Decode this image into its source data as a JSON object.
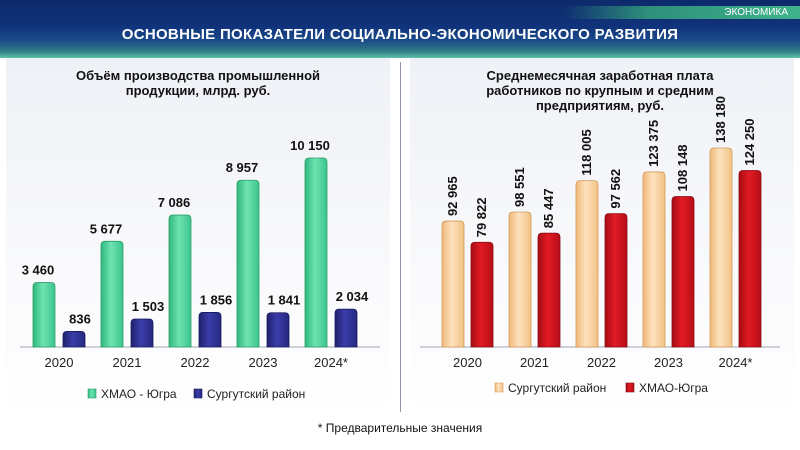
{
  "header": {
    "tag": "ЭКОНОМИКА",
    "title": "ОСНОВНЫЕ ПОКАЗАТЕЛИ СОЦИАЛЬНО-ЭКОНОМИЧЕСКОГО РАЗВИТИЯ"
  },
  "left_title_lines": [
    "Объём производства промышленной",
    "продукции, млрд. руб."
  ],
  "right_title_lines": [
    "Среднемесячная заработная плата",
    "работников по крупным и средним",
    "предприятиям, руб."
  ],
  "footnote": "* Предварительные значения",
  "colors": {
    "green": "#4fd49a",
    "navy": "#2b2d8c",
    "peach": "#f6c890",
    "red": "#c8101a"
  },
  "chart_data": [
    {
      "type": "bar",
      "title": "Объём производства промышленной продукции, млрд. руб.",
      "categories": [
        "2020",
        "2021",
        "2022",
        "2023",
        "2024*"
      ],
      "series": [
        {
          "name": "ХМАО - Югра",
          "values": [
            3460,
            5677,
            7086,
            8957,
            10150
          ],
          "labels": [
            "3 460",
            "5 677",
            "7 086",
            "8 957",
            "10 150"
          ],
          "color": "#4fd49a"
        },
        {
          "name": "Сургутский район",
          "values": [
            836,
            1503,
            1856,
            1841,
            2034
          ],
          "labels": [
            "836",
            "1 503",
            "1 856",
            "1 841",
            "2 034"
          ],
          "color": "#2b2d8c"
        }
      ],
      "legend": "bottom",
      "grid": false
    },
    {
      "type": "bar",
      "title": "Среднемесячная заработная плата работников по крупным и средним предприятиям, руб.",
      "categories": [
        "2020",
        "2021",
        "2022",
        "2023",
        "2024*"
      ],
      "series": [
        {
          "name": "Сургутский район",
          "values": [
            92965,
            98551,
            118005,
            123375,
            138180
          ],
          "labels": [
            "92 965",
            "98 551",
            "118 005",
            "123 375",
            "138 180"
          ],
          "color": "#f6c890"
        },
        {
          "name": "ХМАО-Югра",
          "values": [
            79822,
            85447,
            97562,
            108148,
            124250
          ],
          "labels": [
            "79 822",
            "85 447",
            "97 562",
            "108 148",
            "124 250"
          ],
          "color": "#c8101a"
        }
      ],
      "legend": "bottom",
      "grid": false
    }
  ]
}
